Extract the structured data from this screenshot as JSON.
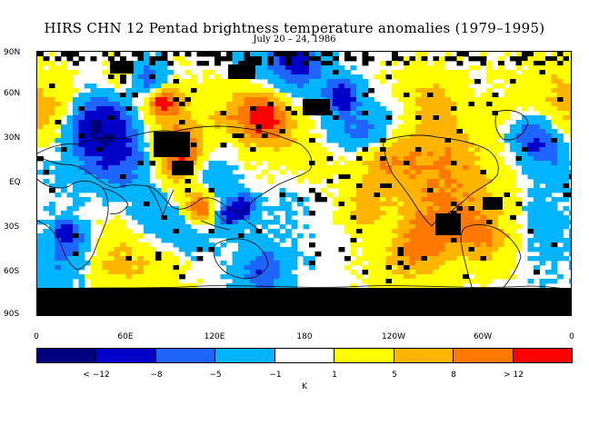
{
  "title": "HIRS CHN 12 Pentad brightness temperature anomalies (1979–1995)",
  "subtitle": "July 20 – 24, 1986",
  "lat_labels": [
    "90N",
    "60N",
    "30N",
    "EQ",
    "30S",
    "60S",
    "90S"
  ],
  "lon_labels": [
    "0",
    "60E",
    "120E",
    "180",
    "120W",
    "60W",
    "0"
  ],
  "colorbar": {
    "colors": [
      "#00007f",
      "#0000c8",
      "#1e64ff",
      "#00b4ff",
      "#ffffff",
      "#ffff00",
      "#ffb400",
      "#ff7800",
      "#ff0000"
    ],
    "labels": [
      "< −12",
      "−8",
      "−5",
      "−1",
      "1",
      "5",
      "8",
      "> 12"
    ],
    "unit": "K"
  },
  "map_colors": {
    "missing": "#000000",
    "land_outline": "#000000"
  }
}
